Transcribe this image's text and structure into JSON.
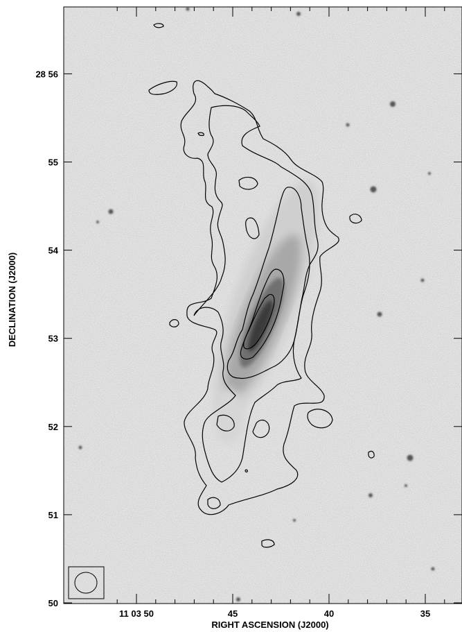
{
  "figure": {
    "xlabel": "RIGHT ASCENSION (J2000)",
    "ylabel": "DECLINATION (J2000)",
    "y_ticks": [
      {
        "dec_arcmin": 56,
        "label": "28 56"
      },
      {
        "dec_arcmin": 55,
        "label": "55"
      },
      {
        "dec_arcmin": 54,
        "label": "54"
      },
      {
        "dec_arcmin": 53,
        "label": "53"
      },
      {
        "dec_arcmin": 52,
        "label": "52"
      },
      {
        "dec_arcmin": 51,
        "label": "51"
      },
      {
        "dec_arcmin": 50,
        "label": "50"
      }
    ],
    "x_ticks": [
      {
        "ra_seconds": 50,
        "label": "11 03 50"
      },
      {
        "ra_seconds": 45,
        "label": "45"
      },
      {
        "ra_seconds": 40,
        "label": "40"
      },
      {
        "ra_seconds": 35,
        "label": "35"
      }
    ],
    "contour_color": "#000000",
    "background_color": "#f3f3f3"
  }
}
